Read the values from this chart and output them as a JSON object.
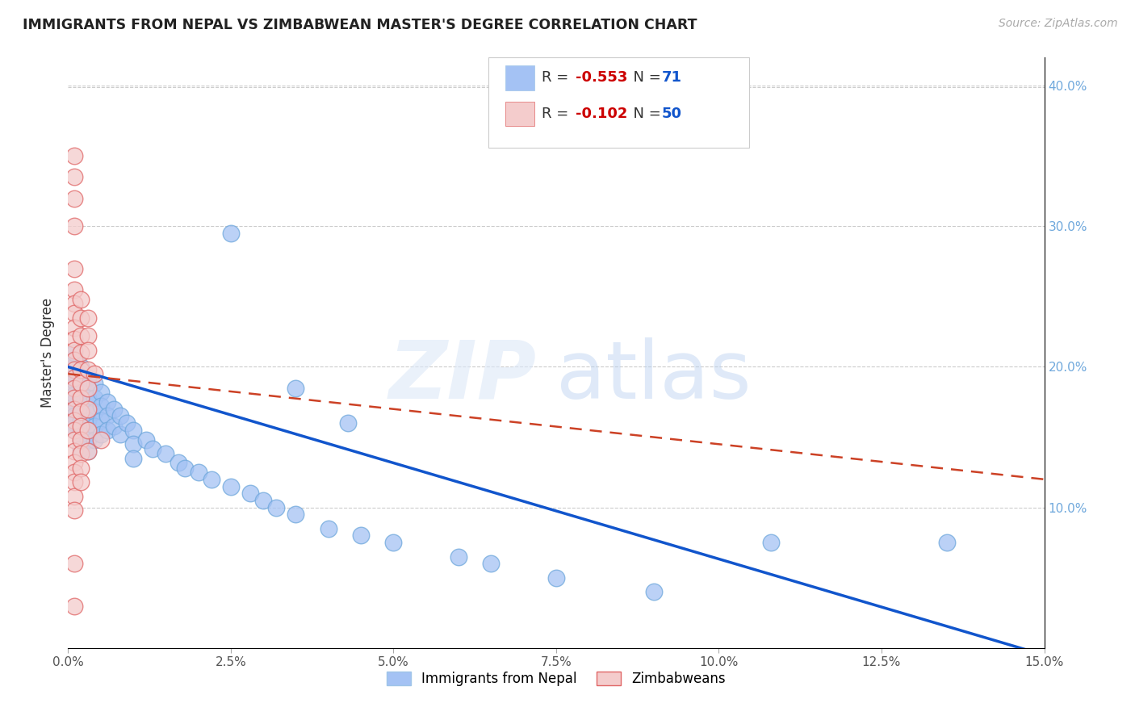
{
  "title": "IMMIGRANTS FROM NEPAL VS ZIMBABWEAN MASTER'S DEGREE CORRELATION CHART",
  "source": "Source: ZipAtlas.com",
  "ylabel": "Master's Degree",
  "color_blue": "#a4c2f4",
  "color_pink": "#f4cccc",
  "color_blue_line": "#1155cc",
  "color_pink_line": "#cc4125",
  "watermark_zip": "ZIP",
  "watermark_atlas": "atlas",
  "nepal_scatter": [
    [
      0.001,
      0.195
    ],
    [
      0.001,
      0.2
    ],
    [
      0.001,
      0.205
    ],
    [
      0.001,
      0.21
    ],
    [
      0.001,
      0.185
    ],
    [
      0.001,
      0.175
    ],
    [
      0.001,
      0.19
    ],
    [
      0.001,
      0.18
    ],
    [
      0.001,
      0.17
    ],
    [
      0.001,
      0.165
    ],
    [
      0.001,
      0.16
    ],
    [
      0.001,
      0.155
    ],
    [
      0.002,
      0.2
    ],
    [
      0.002,
      0.195
    ],
    [
      0.002,
      0.188
    ],
    [
      0.002,
      0.182
    ],
    [
      0.002,
      0.175
    ],
    [
      0.002,
      0.168
    ],
    [
      0.002,
      0.162
    ],
    [
      0.002,
      0.155
    ],
    [
      0.002,
      0.148
    ],
    [
      0.002,
      0.142
    ],
    [
      0.003,
      0.192
    ],
    [
      0.003,
      0.185
    ],
    [
      0.003,
      0.178
    ],
    [
      0.003,
      0.17
    ],
    [
      0.003,
      0.162
    ],
    [
      0.003,
      0.155
    ],
    [
      0.003,
      0.148
    ],
    [
      0.003,
      0.14
    ],
    [
      0.004,
      0.188
    ],
    [
      0.004,
      0.178
    ],
    [
      0.004,
      0.168
    ],
    [
      0.004,
      0.158
    ],
    [
      0.004,
      0.148
    ],
    [
      0.005,
      0.182
    ],
    [
      0.005,
      0.172
    ],
    [
      0.005,
      0.162
    ],
    [
      0.005,
      0.152
    ],
    [
      0.006,
      0.175
    ],
    [
      0.006,
      0.165
    ],
    [
      0.006,
      0.155
    ],
    [
      0.007,
      0.17
    ],
    [
      0.007,
      0.158
    ],
    [
      0.008,
      0.165
    ],
    [
      0.008,
      0.152
    ],
    [
      0.009,
      0.16
    ],
    [
      0.01,
      0.155
    ],
    [
      0.01,
      0.145
    ],
    [
      0.01,
      0.135
    ],
    [
      0.012,
      0.148
    ],
    [
      0.013,
      0.142
    ],
    [
      0.015,
      0.138
    ],
    [
      0.017,
      0.132
    ],
    [
      0.018,
      0.128
    ],
    [
      0.02,
      0.125
    ],
    [
      0.022,
      0.12
    ],
    [
      0.025,
      0.115
    ],
    [
      0.028,
      0.11
    ],
    [
      0.03,
      0.105
    ],
    [
      0.032,
      0.1
    ],
    [
      0.035,
      0.095
    ],
    [
      0.04,
      0.085
    ],
    [
      0.045,
      0.08
    ],
    [
      0.05,
      0.075
    ],
    [
      0.06,
      0.065
    ],
    [
      0.065,
      0.06
    ],
    [
      0.075,
      0.05
    ],
    [
      0.09,
      0.04
    ],
    [
      0.108,
      0.075
    ],
    [
      0.135,
      0.075
    ],
    [
      0.025,
      0.295
    ],
    [
      0.035,
      0.185
    ],
    [
      0.043,
      0.16
    ]
  ],
  "zimbabwe_scatter": [
    [
      0.001,
      0.35
    ],
    [
      0.001,
      0.335
    ],
    [
      0.001,
      0.32
    ],
    [
      0.001,
      0.3
    ],
    [
      0.001,
      0.27
    ],
    [
      0.001,
      0.255
    ],
    [
      0.001,
      0.245
    ],
    [
      0.001,
      0.238
    ],
    [
      0.001,
      0.228
    ],
    [
      0.001,
      0.22
    ],
    [
      0.001,
      0.212
    ],
    [
      0.001,
      0.205
    ],
    [
      0.001,
      0.198
    ],
    [
      0.001,
      0.192
    ],
    [
      0.001,
      0.185
    ],
    [
      0.001,
      0.178
    ],
    [
      0.001,
      0.17
    ],
    [
      0.001,
      0.162
    ],
    [
      0.001,
      0.155
    ],
    [
      0.001,
      0.148
    ],
    [
      0.001,
      0.14
    ],
    [
      0.001,
      0.132
    ],
    [
      0.001,
      0.125
    ],
    [
      0.001,
      0.118
    ],
    [
      0.001,
      0.108
    ],
    [
      0.001,
      0.098
    ],
    [
      0.001,
      0.06
    ],
    [
      0.001,
      0.03
    ],
    [
      0.002,
      0.248
    ],
    [
      0.002,
      0.235
    ],
    [
      0.002,
      0.222
    ],
    [
      0.002,
      0.21
    ],
    [
      0.002,
      0.198
    ],
    [
      0.002,
      0.188
    ],
    [
      0.002,
      0.178
    ],
    [
      0.002,
      0.168
    ],
    [
      0.002,
      0.158
    ],
    [
      0.002,
      0.148
    ],
    [
      0.002,
      0.138
    ],
    [
      0.002,
      0.128
    ],
    [
      0.002,
      0.118
    ],
    [
      0.003,
      0.235
    ],
    [
      0.003,
      0.222
    ],
    [
      0.003,
      0.212
    ],
    [
      0.003,
      0.198
    ],
    [
      0.003,
      0.185
    ],
    [
      0.003,
      0.17
    ],
    [
      0.003,
      0.155
    ],
    [
      0.003,
      0.14
    ],
    [
      0.004,
      0.195
    ],
    [
      0.005,
      0.148
    ]
  ],
  "xlim": [
    0.0,
    0.15
  ],
  "ylim": [
    0.0,
    0.42
  ],
  "nepal_line": {
    "x0": 0.0,
    "y0": 0.2,
    "x1": 0.15,
    "y1": -0.005
  },
  "zimbabwe_line": {
    "x0": 0.0,
    "y0": 0.195,
    "x1": 0.15,
    "y1": 0.12
  }
}
